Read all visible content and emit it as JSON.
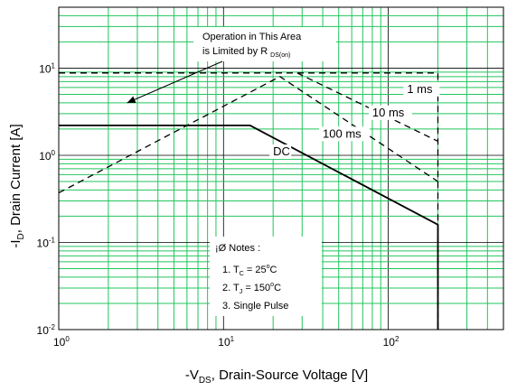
{
  "chart_data": {
    "type": "line",
    "xscale": "log",
    "yscale": "log",
    "xlim": [
      1,
      500
    ],
    "ylim": [
      0.01,
      50
    ],
    "grid": true,
    "grid_color": "#22c55e",
    "line_color": "#000000",
    "xlabel": {
      "main": "-V",
      "sub": "DS",
      "rest": ", Drain-Source Voltage [V]"
    },
    "ylabel": {
      "main": "-I",
      "sub": "D",
      "rest": ", Drain Current [A]"
    },
    "xticks": [
      {
        "value": 1,
        "base": "10",
        "exp": "0"
      },
      {
        "value": 10,
        "base": "10",
        "exp": "1"
      },
      {
        "value": 100,
        "base": "10",
        "exp": "2"
      }
    ],
    "yticks": [
      {
        "value": 0.01,
        "base": "10",
        "exp": "-2"
      },
      {
        "value": 0.1,
        "base": "10",
        "exp": "-1"
      },
      {
        "value": 1,
        "base": "10",
        "exp": "0"
      },
      {
        "value": 10,
        "base": "10",
        "exp": "1"
      }
    ],
    "series": [
      {
        "name": "DC",
        "style": "solid",
        "points": [
          [
            1,
            2.2
          ],
          [
            14.5,
            2.2
          ],
          [
            200,
            0.16
          ],
          [
            200,
            0.01
          ]
        ]
      },
      {
        "name": "100 ms",
        "style": "dashed",
        "points": [
          [
            1,
            0.37
          ],
          [
            22,
            8.0
          ],
          [
            200,
            0.5
          ]
        ]
      },
      {
        "name": "10 ms",
        "style": "dashed",
        "points": [
          [
            28,
            8.8
          ],
          [
            200,
            1.45
          ]
        ]
      },
      {
        "name": "1 ms",
        "style": "dashed",
        "points": [
          [
            1,
            8.8
          ],
          [
            200,
            8.8
          ],
          [
            200,
            0.01
          ]
        ]
      }
    ],
    "limit_line": {
      "style": "dashed",
      "points": [
        [
          1,
          8.8
        ],
        [
          3.7,
          8.8
        ]
      ]
    },
    "curve_labels": [
      {
        "text": "1 ms",
        "x": 130,
        "y": 5.2
      },
      {
        "text": "10 ms",
        "x": 80,
        "y": 2.8
      },
      {
        "text": "100 ms",
        "x": 40,
        "y": 1.6
      },
      {
        "text": "DC",
        "x": 20,
        "y": 1.0
      }
    ],
    "annotation": {
      "line1": "Operation in This Area",
      "line2_main": "is Limited by R",
      "line2_sub": "DS(on)",
      "arrow_to": [
        2.6,
        4.0
      ]
    },
    "notes": {
      "title": "¡Ø Notes :",
      "items": [
        {
          "prefix": "1. T",
          "sub": "C",
          "mid": " = 25",
          "sup": "o",
          "suffix": "C"
        },
        {
          "prefix": "2. T",
          "sub": "J",
          "mid": " = 150",
          "sup": "o",
          "suffix": "C"
        },
        {
          "prefix": "3. Single Pulse",
          "sub": "",
          "mid": "",
          "sup": "",
          "suffix": ""
        }
      ]
    }
  }
}
